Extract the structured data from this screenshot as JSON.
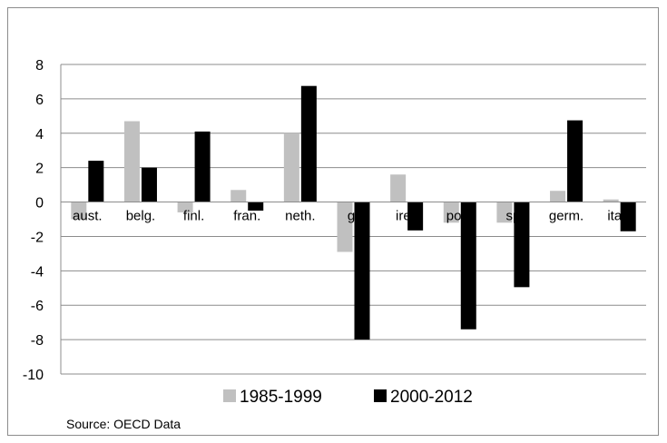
{
  "chart_data": {
    "type": "bar",
    "title": "",
    "xlabel": "",
    "ylabel": "",
    "categories": [
      "aust.",
      "belg.",
      "finl.",
      "fran.",
      "neth.",
      "gr",
      "irel.",
      "port.",
      "sp",
      "germ.",
      "italy"
    ],
    "series": [
      {
        "name": "1985-1999",
        "color": "#c0c0c0",
        "values": [
          -1.0,
          4.7,
          -0.6,
          0.7,
          4.0,
          -2.9,
          1.6,
          -1.2,
          -1.2,
          0.65,
          0.15
        ]
      },
      {
        "name": "2000-2012",
        "color": "#000000",
        "values": [
          2.4,
          2.0,
          4.1,
          -0.5,
          6.75,
          -8.0,
          -1.65,
          -7.4,
          -4.95,
          4.75,
          -1.7
        ]
      }
    ],
    "ylim": [
      -10,
      8
    ],
    "yticks": [
      8,
      6,
      4,
      2,
      0,
      -2,
      -4,
      -6,
      -8,
      -10
    ],
    "grid": true,
    "legend_position": "bottom",
    "note": "Source: OECD Data"
  }
}
